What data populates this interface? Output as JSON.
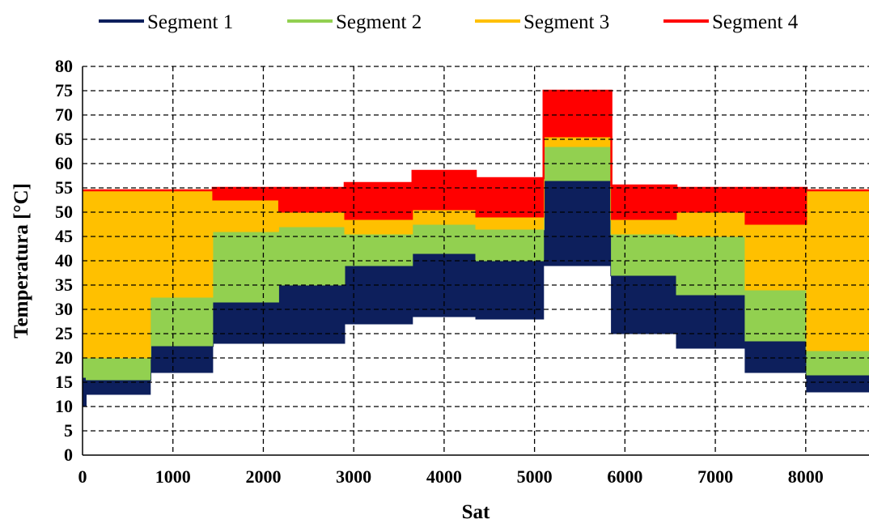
{
  "chart_data": {
    "type": "area",
    "title": "",
    "xlabel": "Sat",
    "ylabel": "Temperatura [°C]",
    "xlim": [
      0,
      8700
    ],
    "ylim": [
      0,
      80
    ],
    "x_ticks": [
      0,
      1000,
      2000,
      3000,
      4000,
      5000,
      6000,
      7000,
      8000
    ],
    "y_ticks": [
      0,
      5,
      10,
      15,
      20,
      25,
      30,
      35,
      40,
      45,
      50,
      55,
      60,
      65,
      70,
      75,
      80
    ],
    "grid": true,
    "legend_position": "top",
    "x": [
      0,
      40,
      750,
      1440,
      2170,
      2900,
      3650,
      4350,
      5100,
      5850,
      6570,
      7330,
      8010,
      8700
    ],
    "series": [
      {
        "name": "Segment 1",
        "color": "#0d1f5c",
        "low": [
          10,
          12.5,
          17,
          23,
          23,
          27,
          28.5,
          28,
          39,
          25,
          22,
          17,
          13,
          13
        ],
        "high": [
          16,
          15.5,
          22.5,
          31.5,
          35,
          39,
          41.5,
          40,
          56.5,
          37,
          33,
          23.5,
          16.5,
          16.5
        ]
      },
      {
        "name": "Segment 2",
        "color": "#92d050",
        "low": [
          16,
          15.5,
          22.5,
          31.5,
          35,
          39,
          41.5,
          40,
          56.5,
          37,
          33,
          23.5,
          16.5,
          16.5
        ],
        "high": [
          20,
          20,
          32.5,
          46,
          47,
          45.5,
          47.5,
          46.5,
          63.5,
          45.5,
          45,
          34,
          21.5,
          21.5
        ]
      },
      {
        "name": "Segment 3",
        "color": "#ffc000",
        "low": [
          20,
          20,
          32.5,
          46,
          47,
          45.5,
          47.5,
          46.5,
          63.5,
          45.5,
          45,
          34,
          21.5,
          21.5
        ],
        "high": [
          54.5,
          54.5,
          54.5,
          52.5,
          50,
          48.5,
          50.5,
          49,
          65.5,
          48.5,
          50,
          47.5,
          54.5,
          54.5
        ]
      },
      {
        "name": "Segment 4",
        "color": "#ff0000",
        "low": [
          54.5,
          54.5,
          54.5,
          52.5,
          50,
          48.5,
          50.5,
          49,
          65.5,
          48.5,
          50,
          47.5,
          54.5,
          54.5
        ],
        "high": [
          54.5,
          54.5,
          54.5,
          55,
          55,
          56,
          58.5,
          57,
          75,
          55.5,
          55,
          55,
          54.5,
          54.5
        ]
      }
    ]
  }
}
